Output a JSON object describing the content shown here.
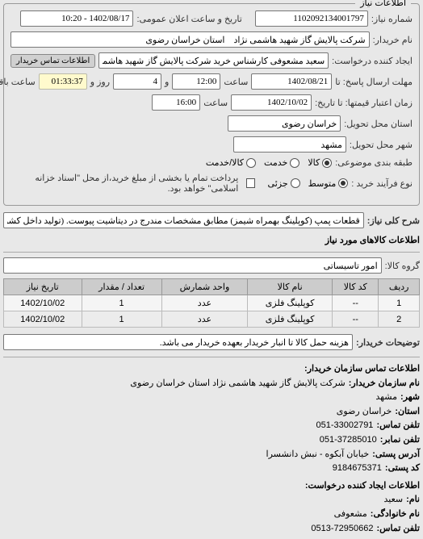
{
  "main_title": "اطلاعات نیاز",
  "fields": {
    "requestNo_label": "شماره نیاز:",
    "requestNo": "1102092134001797",
    "announceDate_label": "تاریخ و ساعت اعلان عمومی:",
    "announceDate": "1402/08/17 - 10:20",
    "buyer_label": "نام خریدار:",
    "buyer": "شرکت پالایش گاز شهید هاشمی نژاد    استان خراسان رضوی",
    "creator_label": "ایجاد کننده درخواست:",
    "creator": "سعید مشعوفی کارشناس خرید شرکت پالایش گاز شهید هاشمی نژاد    استان",
    "buyerContactBtn": "اطلاعات تماس خریدار",
    "replyDeadline_label": "مهلت ارسال پاسخ: تا",
    "replyDate": "1402/08/21",
    "saat_label": "ساعت",
    "replyTime": "12:00",
    "va_label": "و",
    "daysLeft": "4",
    "rooz_label": "روز و",
    "timeLeft": "01:33:37",
    "remaining_label": "ساعت باقی مانده",
    "quoteDeadline_label": "زمان اعتبار قیمتها: تا تاریخ:",
    "quoteDate": "1402/10/02",
    "quoteTime": "16:00",
    "deliveryProvince_label": "استان محل تحویل:",
    "deliveryProvince": "خراسان رضوی",
    "deliveryCity_label": "شهر محل تحویل:",
    "deliveryCity": "مشهد",
    "packaging_label": "طبقه بندی موضوعی:",
    "pack_opt1": "کالا",
    "pack_opt2": "خدمت",
    "pack_opt3": "کالا/خدمت",
    "buyProcess_label": "نوع فرآیند خرید :",
    "proc_opt1": "متوسط",
    "proc_opt2": "جزئی",
    "processDesc": "پرداخت تمام یا بخشی از مبلغ خرید،از محل \"اسناد خزانه اسلامی\" خواهد بود.",
    "keyDesc_label": "شرح کلی نیاز:",
    "keyDesc": "قطعات پمپ (کوپلینگ بهمراه شیمز) مطابق مشخصات مندرج در دیتاشیت پیوست. (تولید داخل کشور)",
    "goodsInfo_title": "اطلاعات کالاهای مورد نیاز",
    "goodsGroup_label": "گروه کالا:",
    "goodsGroup": "امور تاسیساتی",
    "buyerNotes_label": "توضیحات خریدار:",
    "buyerNotes": "هزینه حمل کالا تا انبار خریدار بعهده خریدار می باشد."
  },
  "table": {
    "headers": {
      "row": "ردیف",
      "code": "کد کالا",
      "name": "نام کالا",
      "unit": "واحد شمارش",
      "qty": "تعداد / مقدار",
      "date": "تاریخ نیاز"
    },
    "rows": [
      {
        "row": "1",
        "code": "--",
        "name": "کوپلینگ فلزی",
        "unit": "عدد",
        "qty": "1",
        "date": "1402/10/02"
      },
      {
        "row": "2",
        "code": "--",
        "name": "کوپلینگ فلزی",
        "unit": "عدد",
        "qty": "1",
        "date": "1402/10/02"
      }
    ]
  },
  "contact": {
    "title": "اطلاعات تماس سازمان خریدار:",
    "orgName_label": "نام سازمان خریدار:",
    "orgName": "شرکت پالایش گاز شهید هاشمی نژاد استان خراسان رضوی",
    "city_label": "شهر:",
    "city": "مشهد",
    "province_label": "استان:",
    "province": "خراسان رضوی",
    "phone_label": "تلفن تماس:",
    "phone": "051-33002791",
    "fax_label": "تلفن نمابر:",
    "fax": "051-37285010",
    "address_label": "آدرس پستی:",
    "address": "خیابان آبکوه - نبش دانشسرا",
    "postal_label": "کد پستی:",
    "postal": "9184675371",
    "creatorInfo_title": "اطلاعات ایجاد کننده درخواست:",
    "fname_label": "نام:",
    "fname": "سعید",
    "lname_label": "نام خانوادگی:",
    "lname": "مشعوفی",
    "cphone_label": "تلفن تماس:",
    "cphone": "0513-72950662"
  }
}
